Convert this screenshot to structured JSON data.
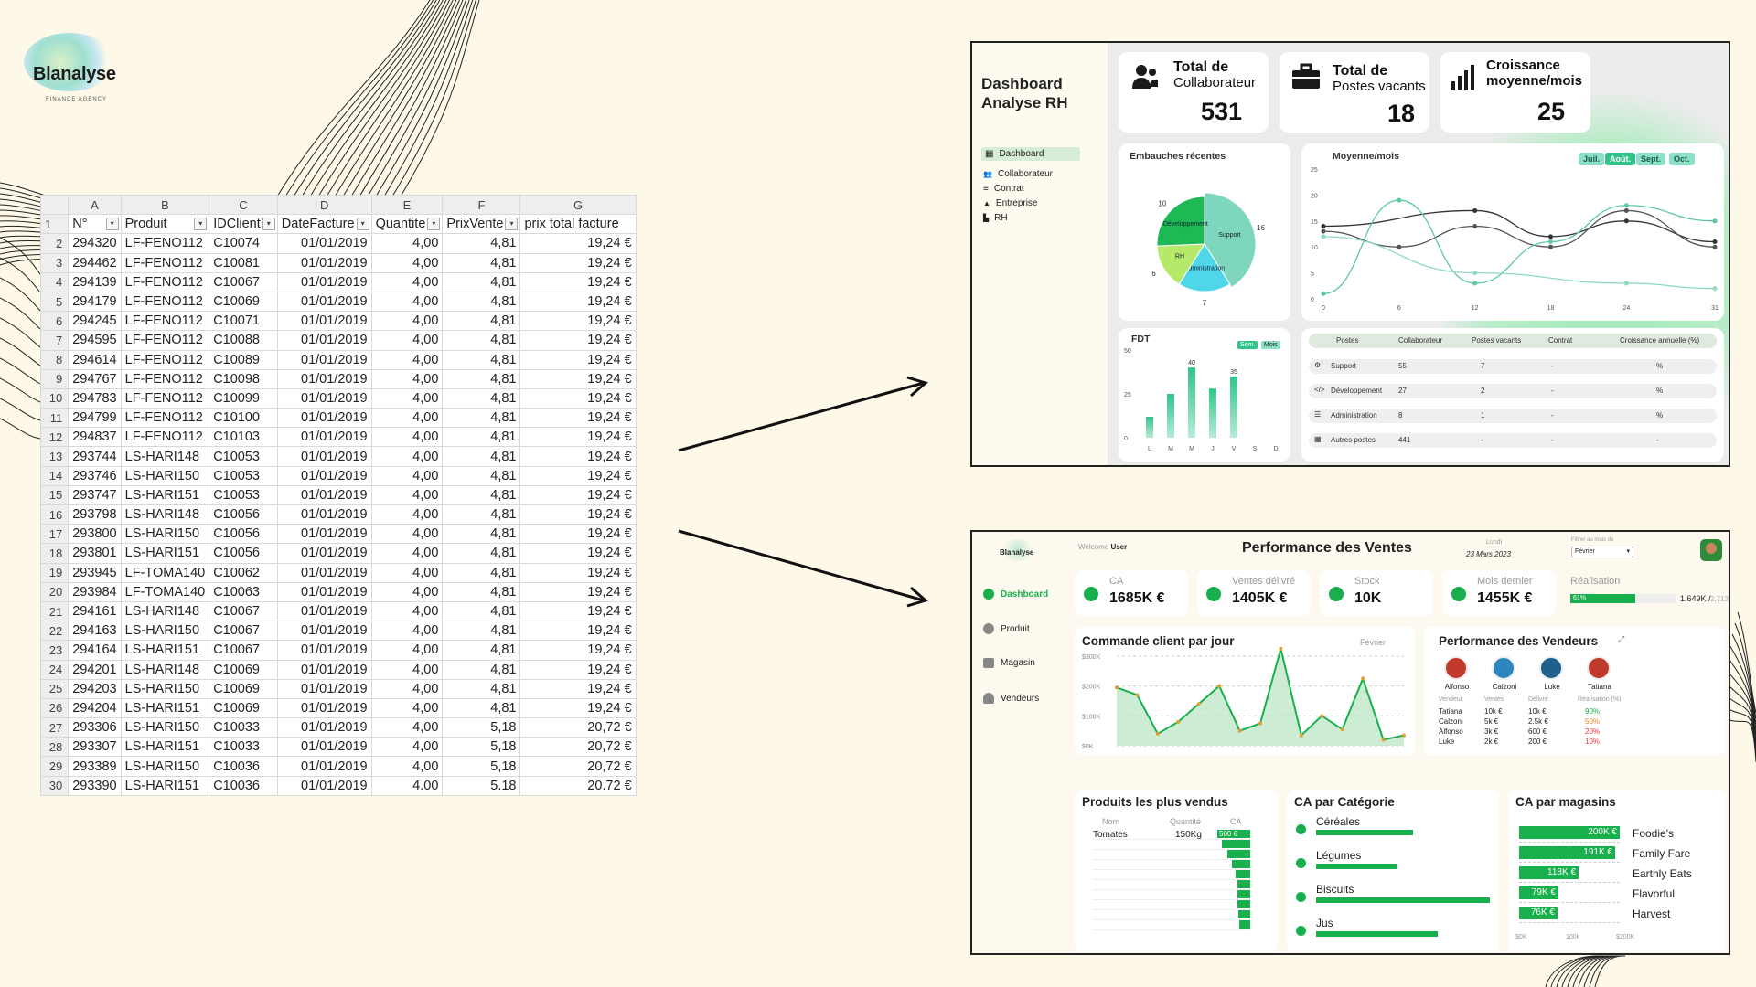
{
  "logo": {
    "name": "Blanalyse",
    "tagline": "FINANCE AGENCY"
  },
  "sheet": {
    "col_letters": [
      "A",
      "B",
      "C",
      "D",
      "E",
      "F",
      "G"
    ],
    "headers": [
      "N°",
      "Produit",
      "IDClient",
      "DateFacture",
      "Quantite",
      "PrixVente",
      "prix total facture"
    ],
    "rows": [
      [
        "294320",
        "LF-FENO112",
        "C10074",
        "01/01/2019",
        "4,00",
        "4,81",
        "19,24 €"
      ],
      [
        "294462",
        "LF-FENO112",
        "C10081",
        "01/01/2019",
        "4,00",
        "4,81",
        "19,24 €"
      ],
      [
        "294139",
        "LF-FENO112",
        "C10067",
        "01/01/2019",
        "4,00",
        "4,81",
        "19,24 €"
      ],
      [
        "294179",
        "LF-FENO112",
        "C10069",
        "01/01/2019",
        "4,00",
        "4,81",
        "19,24 €"
      ],
      [
        "294245",
        "LF-FENO112",
        "C10071",
        "01/01/2019",
        "4,00",
        "4,81",
        "19,24 €"
      ],
      [
        "294595",
        "LF-FENO112",
        "C10088",
        "01/01/2019",
        "4,00",
        "4,81",
        "19,24 €"
      ],
      [
        "294614",
        "LF-FENO112",
        "C10089",
        "01/01/2019",
        "4,00",
        "4,81",
        "19,24 €"
      ],
      [
        "294767",
        "LF-FENO112",
        "C10098",
        "01/01/2019",
        "4,00",
        "4,81",
        "19,24 €"
      ],
      [
        "294783",
        "LF-FENO112",
        "C10099",
        "01/01/2019",
        "4,00",
        "4,81",
        "19,24 €"
      ],
      [
        "294799",
        "LF-FENO112",
        "C10100",
        "01/01/2019",
        "4,00",
        "4,81",
        "19,24 €"
      ],
      [
        "294837",
        "LF-FENO112",
        "C10103",
        "01/01/2019",
        "4,00",
        "4,81",
        "19,24 €"
      ],
      [
        "293744",
        "LS-HARI148",
        "C10053",
        "01/01/2019",
        "4,00",
        "4,81",
        "19,24 €"
      ],
      [
        "293746",
        "LS-HARI150",
        "C10053",
        "01/01/2019",
        "4,00",
        "4,81",
        "19,24 €"
      ],
      [
        "293747",
        "LS-HARI151",
        "C10053",
        "01/01/2019",
        "4,00",
        "4,81",
        "19,24 €"
      ],
      [
        "293798",
        "LS-HARI148",
        "C10056",
        "01/01/2019",
        "4,00",
        "4,81",
        "19,24 €"
      ],
      [
        "293800",
        "LS-HARI150",
        "C10056",
        "01/01/2019",
        "4,00",
        "4,81",
        "19,24 €"
      ],
      [
        "293801",
        "LS-HARI151",
        "C10056",
        "01/01/2019",
        "4,00",
        "4,81",
        "19,24 €"
      ],
      [
        "293945",
        "LF-TOMA140",
        "C10062",
        "01/01/2019",
        "4,00",
        "4,81",
        "19,24 €"
      ],
      [
        "293984",
        "LF-TOMA140",
        "C10063",
        "01/01/2019",
        "4,00",
        "4,81",
        "19,24 €"
      ],
      [
        "294161",
        "LS-HARI148",
        "C10067",
        "01/01/2019",
        "4,00",
        "4,81",
        "19,24 €"
      ],
      [
        "294163",
        "LS-HARI150",
        "C10067",
        "01/01/2019",
        "4,00",
        "4,81",
        "19,24 €"
      ],
      [
        "294164",
        "LS-HARI151",
        "C10067",
        "01/01/2019",
        "4,00",
        "4,81",
        "19,24 €"
      ],
      [
        "294201",
        "LS-HARI148",
        "C10069",
        "01/01/2019",
        "4,00",
        "4,81",
        "19,24 €"
      ],
      [
        "294203",
        "LS-HARI150",
        "C10069",
        "01/01/2019",
        "4,00",
        "4,81",
        "19,24 €"
      ],
      [
        "294204",
        "LS-HARI151",
        "C10069",
        "01/01/2019",
        "4,00",
        "4,81",
        "19,24 €"
      ],
      [
        "293306",
        "LS-HARI150",
        "C10033",
        "01/01/2019",
        "4,00",
        "5,18",
        "20,72 €"
      ],
      [
        "293307",
        "LS-HARI151",
        "C10033",
        "01/01/2019",
        "4,00",
        "5,18",
        "20,72 €"
      ],
      [
        "293389",
        "LS-HARI150",
        "C10036",
        "01/01/2019",
        "4,00",
        "5,18",
        "20,72 €"
      ],
      [
        "293390",
        "LS-HARI151",
        "C10036",
        "01/01/2019",
        "4.00",
        "5.18",
        "20.72 €"
      ]
    ]
  },
  "hr": {
    "title_line1": "Dashboard",
    "title_line2": "Analyse RH",
    "nav": [
      "Dashboard",
      "Collaborateur",
      "Contrat",
      "Entreprise",
      "RH"
    ],
    "kpis": [
      {
        "label_bold": "Total de",
        "label": "Collaborateur",
        "value": "531"
      },
      {
        "label_bold": "Total de",
        "label": "Postes vacants",
        "value": "18"
      },
      {
        "label_bold": "Croissance",
        "label": "moyenne/mois",
        "value": "25"
      }
    ],
    "pie": {
      "title": "Embauches récentes",
      "slices": [
        {
          "label": "Support",
          "value": 16,
          "color": "#7ed6bd"
        },
        {
          "label": "Administration",
          "value": 7,
          "color": "#4fd6e8"
        },
        {
          "label": "RH",
          "value": 6,
          "color": "#b6e86a"
        },
        {
          "label": "Développement",
          "value": 10,
          "color": "#1db954"
        }
      ]
    },
    "line": {
      "title": "Moyenne/mois",
      "months": [
        "Juil.",
        "Août.",
        "Sept.",
        "Oct."
      ],
      "x_ticks": [
        "0",
        "6",
        "12",
        "18",
        "24",
        "31"
      ],
      "y_ticks": [
        "0",
        "5",
        "10",
        "15",
        "20",
        "25"
      ],
      "ylim": [
        0,
        25
      ],
      "xlim": [
        0,
        31
      ],
      "series": [
        {
          "color": "#333333",
          "points": [
            [
              0,
              14
            ],
            [
              12,
              17
            ],
            [
              18,
              12
            ],
            [
              24,
              15
            ],
            [
              31,
              11
            ]
          ]
        },
        {
          "color": "#555555",
          "points": [
            [
              0,
              13
            ],
            [
              6,
              10
            ],
            [
              12,
              14
            ],
            [
              18,
              10
            ],
            [
              24,
              17
            ],
            [
              31,
              10
            ]
          ]
        },
        {
          "color": "#5cc8a8",
          "points": [
            [
              0,
              1
            ],
            [
              6,
              19
            ],
            [
              12,
              3
            ],
            [
              18,
              11
            ],
            [
              24,
              18
            ],
            [
              31,
              15
            ]
          ]
        },
        {
          "color": "#8ed8c8",
          "points": [
            [
              0,
              12
            ],
            [
              12,
              5
            ],
            [
              24,
              3
            ],
            [
              31,
              2
            ]
          ]
        }
      ]
    },
    "fdt": {
      "title": "FDT",
      "toggle": [
        "Sem.",
        "Mois"
      ],
      "days": [
        "L",
        "M",
        "M",
        "J",
        "V",
        "S",
        "D"
      ],
      "y_ticks": [
        "0",
        "25",
        "50"
      ],
      "values": [
        12,
        25,
        40,
        28,
        35,
        0,
        0
      ],
      "labels": [
        "",
        "",
        "40",
        "",
        "35",
        "",
        ""
      ],
      "ylim": [
        0,
        50
      ]
    },
    "table": {
      "headers": [
        "Postes",
        "Collaborateur",
        "Postes vacants",
        "Contrat",
        "Croissance annuelle (%)"
      ],
      "rows": [
        {
          "poste": "Support",
          "collab": "55",
          "vacants": "7",
          "contrat": "-",
          "croiss": "%"
        },
        {
          "poste": "Développement",
          "collab": "27",
          "vacants": "2",
          "contrat": "-",
          "croiss": "%"
        },
        {
          "poste": "Administration",
          "collab": "8",
          "vacants": "1",
          "contrat": "-",
          "croiss": "%"
        },
        {
          "poste": "Autres postes",
          "collab": "441",
          "vacants": "-",
          "contrat": "-",
          "croiss": "-"
        }
      ]
    }
  },
  "sales": {
    "logo": "Blanalyse",
    "welcome": "Welcome",
    "user": "User",
    "title": "Performance des Ventes",
    "day": "Lundi",
    "date": "23 Mars 2023",
    "filter_label": "Filtrer au mois de",
    "filter_value": "Février",
    "nav": [
      "Dashboard",
      "Produit",
      "Magasin",
      "Vendeurs"
    ],
    "kpis": [
      {
        "label": "CA",
        "value": "1685K €"
      },
      {
        "label": "Ventes délivré",
        "value": "1405K €"
      },
      {
        "label": "Stock",
        "value": "10K"
      },
      {
        "label": "Mois dernier",
        "value": "1455K €"
      }
    ],
    "realisation": {
      "label": "Réalisation",
      "pct": "61%",
      "fill": 0.61,
      "current": "1,649K /",
      "target": "2,713K"
    },
    "daily": {
      "title": "Commande client par jour",
      "month": "Février",
      "y_ticks": [
        "$0K",
        "$100K",
        "$200K",
        "$300K"
      ],
      "ylim": [
        0,
        300
      ],
      "values": [
        195,
        170,
        40,
        80,
        140,
        200,
        50,
        75,
        325,
        35,
        100,
        55,
        225,
        20,
        35
      ]
    },
    "vendors": {
      "title": "Performance des Vendeurs",
      "names": [
        "Alfonso",
        "Calzoni",
        "Luke",
        "Tatiana"
      ],
      "headers": [
        "Vendeur",
        "Ventes",
        "Délivré",
        "Réalisation (%)"
      ],
      "rows": [
        {
          "name": "Tatiana",
          "ventes": "10k €",
          "delivre": "10k €",
          "real": "90%",
          "color": "#18b04c"
        },
        {
          "name": "Calzoni",
          "ventes": "5k €",
          "delivre": "2.5k €",
          "real": "50%",
          "color": "#e88a2a"
        },
        {
          "name": "Alfonso",
          "ventes": "3k €",
          "delivre": "600 €",
          "real": "20%",
          "color": "#e23b3b"
        },
        {
          "name": "Luke",
          "ventes": "2k €",
          "delivre": "200 €",
          "real": "10%",
          "color": "#e23b3b"
        }
      ]
    },
    "top_products": {
      "title": "Produits les plus vendus",
      "headers": [
        "Nom",
        "Quantité",
        "CA"
      ],
      "row": {
        "nom": "Tomates",
        "qte": "150Kg",
        "ca": "500 €"
      },
      "bars": [
        1.0,
        0.85,
        0.7,
        0.55,
        0.45,
        0.4,
        0.4,
        0.38,
        0.36,
        0.34
      ]
    },
    "categories": {
      "title": "CA par Catégorie",
      "items": [
        {
          "name": "Céréales",
          "fill": 0.56
        },
        {
          "name": "Légumes",
          "fill": 0.47
        },
        {
          "name": "Biscuits",
          "fill": 1.0
        },
        {
          "name": "Jus",
          "fill": 0.7
        }
      ]
    },
    "stores": {
      "title": "CA par magasins",
      "x_ticks": [
        "$0K",
        "100k",
        "$200K"
      ],
      "items": [
        {
          "name": "Foodie's",
          "label": "200K €",
          "value": 200
        },
        {
          "name": "Family Fare",
          "label": "191K €",
          "value": 191
        },
        {
          "name": "Earthly Eats",
          "label": "118K €",
          "value": 118
        },
        {
          "name": "Flavorful",
          "label": "79K €",
          "value": 79
        },
        {
          "name": "Harvest",
          "label": "76K €",
          "value": 76
        }
      ]
    }
  }
}
